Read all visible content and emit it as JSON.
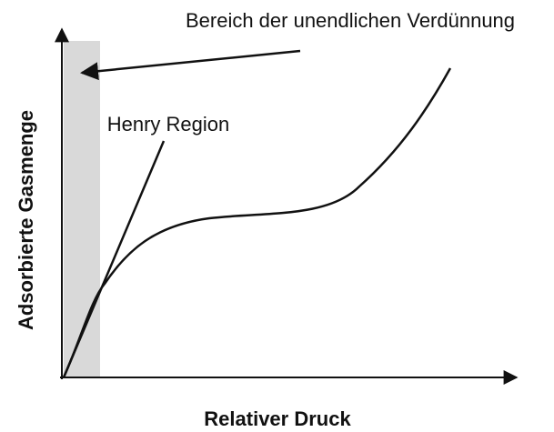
{
  "annotation": "Bereich der unendlichen Verdünnung",
  "region_label": "Henry Region",
  "y_axis_label": "Adsorbierte Gasmenge",
  "x_axis_label": "Relativer Druck"
}
